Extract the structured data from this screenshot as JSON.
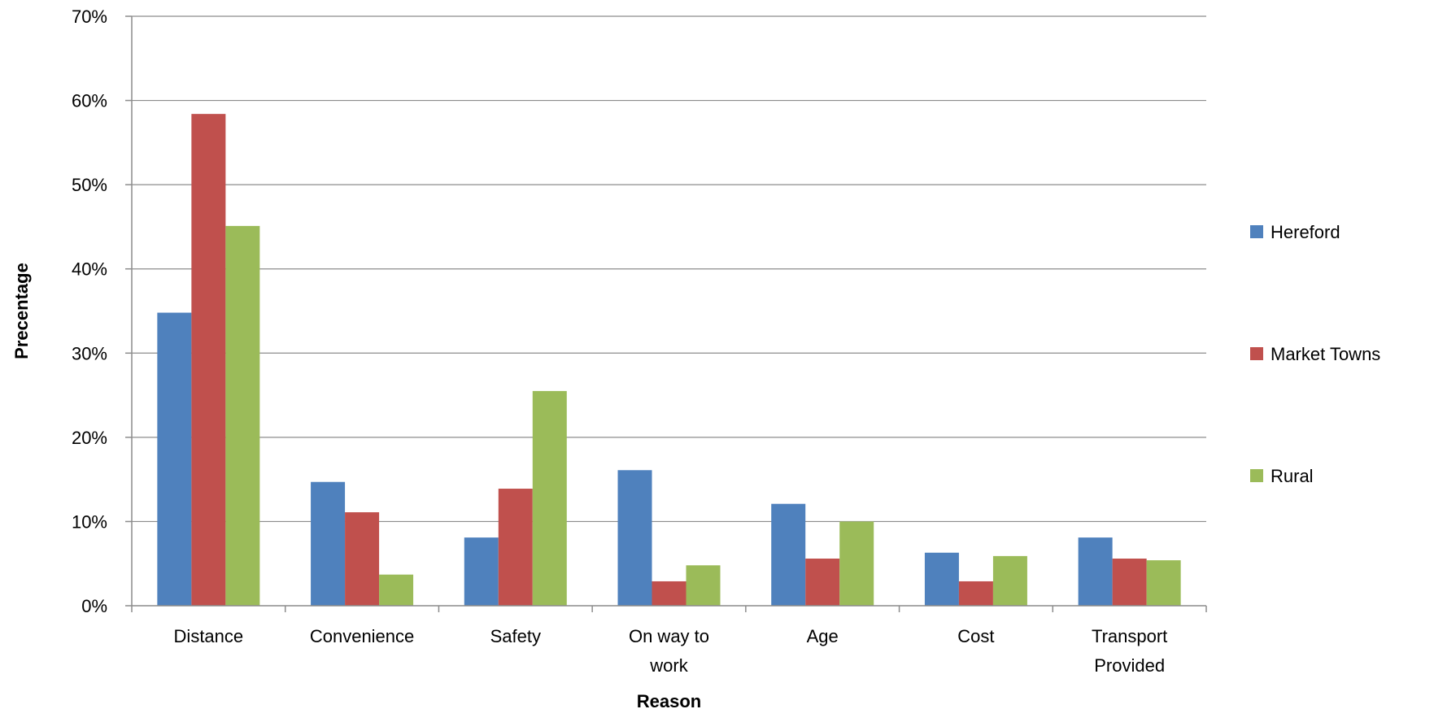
{
  "chart_data": {
    "type": "bar",
    "title": "",
    "xlabel": "Reason",
    "ylabel": "Precentage",
    "ylim": [
      0,
      70
    ],
    "y_ticks": [
      0,
      10,
      20,
      30,
      40,
      50,
      60,
      70
    ],
    "y_tick_labels": [
      "0%",
      "10%",
      "20%",
      "30%",
      "40%",
      "50%",
      "60%",
      "70%"
    ],
    "grid": true,
    "legend_position": "right",
    "categories": [
      [
        "Distance"
      ],
      [
        "Convenience"
      ],
      [
        "Safety"
      ],
      [
        "On way to",
        "work"
      ],
      [
        "Age"
      ],
      [
        "Cost"
      ],
      [
        "Transport",
        "Provided"
      ]
    ],
    "series": [
      {
        "name": "Hereford",
        "color": "#4f81bd",
        "values": [
          34.8,
          14.7,
          8.1,
          16.1,
          12.1,
          6.3,
          8.1
        ]
      },
      {
        "name": "Market Towns",
        "color": "#c0504d",
        "values": [
          58.4,
          11.1,
          13.9,
          2.9,
          5.6,
          2.9,
          5.6
        ]
      },
      {
        "name": "Rural",
        "color": "#9bbb59",
        "values": [
          45.1,
          3.7,
          25.5,
          4.8,
          10.0,
          5.9,
          5.4
        ]
      }
    ]
  }
}
